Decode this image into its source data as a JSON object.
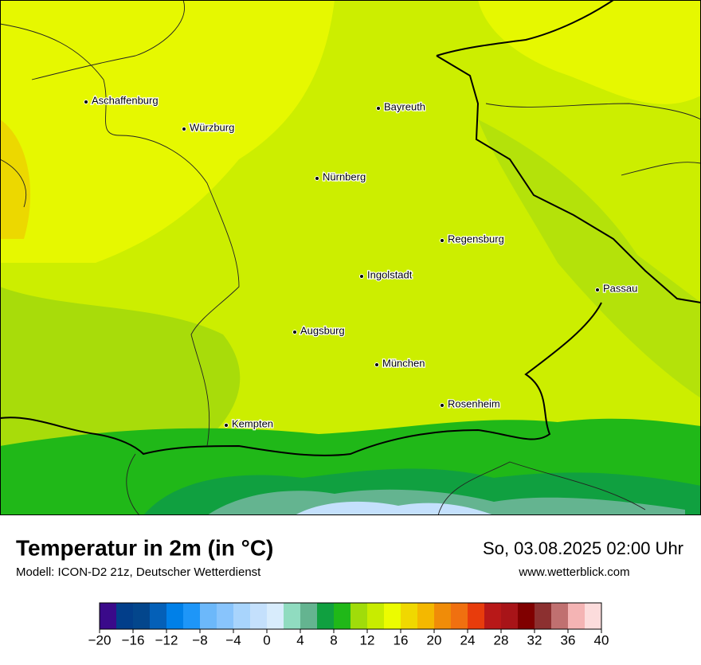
{
  "map": {
    "cities": [
      "Aschaffenburg",
      "Würzburg",
      "Bayreuth",
      "Nürnberg",
      "Regensburg",
      "Ingolstadt",
      "Passau",
      "Augsburg",
      "München",
      "Rosenheim",
      "Kempten"
    ]
  },
  "footer": {
    "title": "Temperatur in 2m (in °C)",
    "subtitle": "Modell: ICON-D2 21z, Deutscher Wetterdienst",
    "date": "So, 03.08.2025 02:00 Uhr",
    "source": "www.wetterblick.com"
  },
  "legend": {
    "lim": [
      -20,
      40
    ],
    "colors": [
      "#3a0a8a",
      "#023e8a",
      "#03468c",
      "#0460b8",
      "#0080e8",
      "#1e96f8",
      "#6cb8fa",
      "#88c4fc",
      "#a8d4fc",
      "#c4e0fc",
      "#d8ecfc",
      "#90dcc0",
      "#64b490",
      "#10a040",
      "#20b818",
      "#a0dc0a",
      "#c8ec00",
      "#ecfc00",
      "#f0d800",
      "#f4b800",
      "#f08c08",
      "#f07010",
      "#e83c0c",
      "#b81818",
      "#a81418",
      "#800000",
      "#8c3030",
      "#c07070",
      "#f4b4b4",
      "#fcdcdc"
    ],
    "ticks": [
      {
        "value": -20,
        "label": "−20"
      },
      {
        "value": -16,
        "label": "−16"
      },
      {
        "value": -12,
        "label": "−12"
      },
      {
        "value": -8,
        "label": "−8"
      },
      {
        "value": -4,
        "label": "−4"
      },
      0,
      4,
      8,
      12,
      16,
      20,
      24,
      28,
      32,
      36,
      40
    ]
  }
}
